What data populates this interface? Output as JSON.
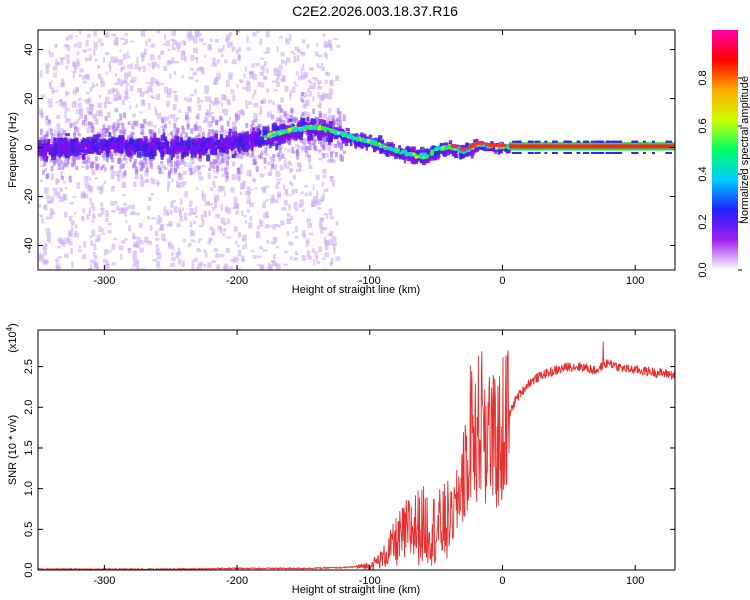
{
  "title": "C2E2.2026.003.18.37.R16",
  "chart_data": [
    {
      "type": "heatmap",
      "name": "spectrogram",
      "title": "C2E2.2026.003.18.37.R16",
      "xlabel": "Height of straight line (km)",
      "ylabel": "Frequency (Hz)",
      "xlim": [
        -350,
        130
      ],
      "ylim": [
        -50,
        48
      ],
      "xticks": [
        -300,
        -200,
        -100,
        0,
        100
      ],
      "yticks": [
        -40,
        -20,
        0,
        20,
        40
      ],
      "xtick_labels": [
        "-300",
        "-200",
        "-100",
        "0",
        "100"
      ],
      "ytick_labels": [
        "-40",
        "-20",
        "0",
        "20",
        "40"
      ],
      "ridge": {
        "x": [
          -350,
          -300,
          -250,
          -200,
          -180,
          -160,
          -140,
          -120,
          -110,
          -100,
          -90,
          -80,
          -70,
          -60,
          -50,
          -40,
          -30,
          -20,
          -10,
          0,
          10,
          130
        ],
        "y": [
          0,
          2,
          1,
          3,
          5,
          8,
          9,
          6,
          4,
          3,
          1,
          -1,
          -2,
          -3,
          0,
          1,
          -1,
          2,
          1,
          1,
          0.5,
          0.5
        ]
      },
      "colorbar": {
        "label": "Normalized spectral amplitude",
        "range": [
          0,
          1
        ],
        "ticks": [
          0.0,
          0.2,
          0.4,
          0.6,
          0.8
        ],
        "tick_labels": [
          "0.0",
          "0.2",
          "0.4",
          "0.6",
          "0.8"
        ],
        "colors": [
          "#ffffff",
          "#a020f0",
          "#2020ff",
          "#00ccff",
          "#00ff66",
          "#ccff00",
          "#ffaa00",
          "#ff0000",
          "#ff00aa"
        ]
      }
    },
    {
      "type": "line",
      "name": "snr",
      "xlabel": "Height of straight line (km)",
      "ylabel": "SNR (10 * v/v)",
      "y_multiplier": "(x10",
      "y_multiplier_exp": "4",
      "y_multiplier_close": ")",
      "xlim": [
        -350,
        130
      ],
      "ylim": [
        0,
        2.95
      ],
      "xticks": [
        -300,
        -200,
        -100,
        0,
        100
      ],
      "yticks": [
        0,
        0.5,
        1,
        1.5,
        2,
        2.5
      ],
      "xtick_labels": [
        "-300",
        "-200",
        "-100",
        "0",
        "100"
      ],
      "ytick_labels": [
        "0.0",
        "0.5",
        "1.0",
        "1.5",
        "2.0",
        "2.5"
      ],
      "color": "#e53030",
      "series": [
        {
          "name": "SNR",
          "x": [
            -350,
            -300,
            -250,
            -200,
            -150,
            -120,
            -100,
            -90,
            -80,
            -70,
            -60,
            -50,
            -40,
            -35,
            -30,
            -25,
            -20,
            -15,
            -10,
            -5,
            0,
            10,
            20,
            30,
            40,
            50,
            60,
            70,
            80,
            90,
            100,
            110,
            120,
            130
          ],
          "y": [
            0.01,
            0.01,
            0.01,
            0.02,
            0.02,
            0.03,
            0.05,
            0.15,
            0.35,
            0.5,
            0.55,
            0.5,
            0.6,
            0.75,
            1.2,
            1.6,
            1.7,
            1.8,
            1.65,
            1.5,
            1.7,
            2.1,
            2.3,
            2.4,
            2.45,
            2.5,
            2.5,
            2.45,
            2.55,
            2.48,
            2.46,
            2.44,
            2.42,
            2.4
          ]
        }
      ]
    }
  ]
}
